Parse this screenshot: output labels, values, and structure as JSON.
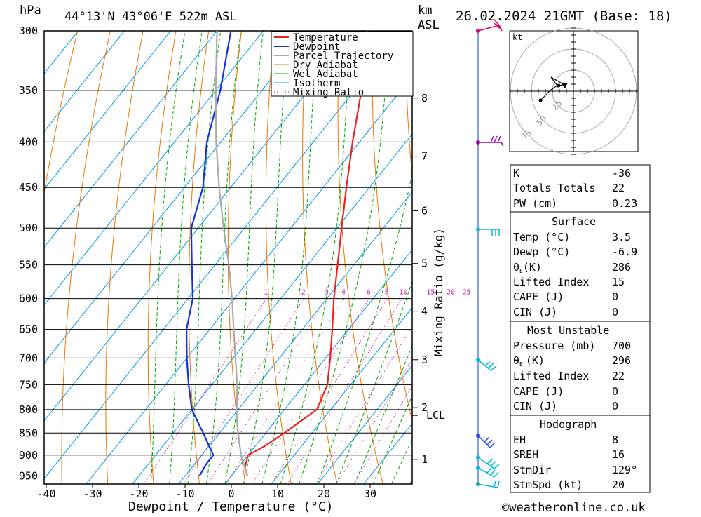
{
  "header": {
    "hpa_label": "hPa",
    "location": "44°13'N 43°06'E 522m ASL",
    "km_label": "km",
    "asl_label": "ASL",
    "datetime": "26.02.2024 21GMT (Base: 18)"
  },
  "colors": {
    "temperature": "#ee2222",
    "dewpoint": "#1133dd",
    "parcel": "#aaaaaa",
    "dry_adiabat": "#ee7700",
    "wet_adiabat": "#00aa00",
    "isotherm": "#0099ee",
    "mixing_ratio": "#cc0099",
    "wind_line": "#0044cc",
    "barb_cyan": "#00bbdd",
    "barb_blue": "#2244ee",
    "barb_purple": "#9900bb",
    "barb_magenta": "#dd0077"
  },
  "chart_data": {
    "type": "line",
    "xlabel": "Dewpoint / Temperature (°C)",
    "ylabel_right": "Mixing Ratio (g/kg)",
    "x_ticks": [
      "-40",
      "-30",
      "-20",
      "-10",
      "0",
      "10",
      "20",
      "30"
    ],
    "pressure_levels": [
      "300",
      "350",
      "400",
      "450",
      "500",
      "550",
      "600",
      "650",
      "700",
      "750",
      "800",
      "850",
      "900",
      "950"
    ],
    "km_ticks": [
      {
        "km": "1",
        "p": 910
      },
      {
        "km": "2",
        "p": 796
      },
      {
        "km": "3",
        "p": 703
      },
      {
        "km": "4",
        "p": 620
      },
      {
        "km": "5",
        "p": 548
      },
      {
        "km": "6",
        "p": 478
      },
      {
        "km": "7",
        "p": 415
      },
      {
        "km": "8",
        "p": 357
      }
    ],
    "lcl": {
      "label": "LCL",
      "p": 812
    },
    "mixing_ratio_labels": [
      "1",
      "2",
      "3",
      "4",
      "6",
      "8",
      "10",
      "15",
      "20",
      "25"
    ],
    "legend": [
      "Temperature",
      "Dewpoint",
      "Parcel Trajectory",
      "Dry Adiabat",
      "Wet Adiabat",
      "Isotherm",
      "Mixing Ratio"
    ],
    "series": [
      {
        "name": "Temperature",
        "points": [
          [
            950,
            3.5
          ],
          [
            930,
            1.5
          ],
          [
            900,
            0.0
          ],
          [
            880,
            2.0
          ],
          [
            850,
            4.0
          ],
          [
            800,
            7.0
          ],
          [
            750,
            5.0
          ],
          [
            700,
            1.0
          ],
          [
            650,
            -3.5
          ],
          [
            600,
            -8.5
          ],
          [
            550,
            -13.5
          ],
          [
            500,
            -19.0
          ],
          [
            450,
            -25.0
          ],
          [
            400,
            -31.5
          ],
          [
            350,
            -38.5
          ],
          [
            300,
            -47.5
          ]
        ]
      },
      {
        "name": "Dewpoint",
        "points": [
          [
            950,
            -6.9
          ],
          [
            920,
            -7.5
          ],
          [
            900,
            -7.5
          ],
          [
            850,
            -13.5
          ],
          [
            800,
            -20.0
          ],
          [
            750,
            -25.0
          ],
          [
            700,
            -30.0
          ],
          [
            650,
            -35.0
          ],
          [
            600,
            -39.0
          ],
          [
            550,
            -45.0
          ],
          [
            500,
            -51.5
          ],
          [
            450,
            -56.0
          ],
          [
            400,
            -63.0
          ],
          [
            350,
            -69.0
          ],
          [
            300,
            -77.0
          ]
        ]
      },
      {
        "name": "Parcel Trajectory",
        "points": [
          [
            950,
            3.5
          ],
          [
            900,
            -1.5
          ],
          [
            850,
            -6.0
          ],
          [
            812,
            -9.3
          ],
          [
            750,
            -14.5
          ],
          [
            700,
            -19.5
          ],
          [
            650,
            -24.8
          ],
          [
            600,
            -30.5
          ],
          [
            550,
            -37.0
          ],
          [
            500,
            -44.5
          ],
          [
            450,
            -52.5
          ],
          [
            400,
            -61.0
          ],
          [
            350,
            -70.0
          ],
          [
            300,
            -80.0
          ]
        ]
      }
    ],
    "hodograph": {
      "unit_label": "kt",
      "ring_labels": [
        "25",
        "50",
        "75"
      ]
    }
  },
  "indices": {
    "k_label": "K",
    "k_value": "-36",
    "tt_label": "Totals Totals",
    "tt_value": "22",
    "pw_label": "PW (cm)",
    "pw_value": "0.23"
  },
  "surface": {
    "title": "Surface",
    "temp_label": "Temp (°C)",
    "temp_value": "3.5",
    "dewp_label": "Dewp (°C)",
    "dewp_value": "-6.9",
    "theta_label": "θ",
    "theta_sub": "E",
    "theta_unit": "(K)",
    "theta_value": "286",
    "li_label": "Lifted Index",
    "li_value": "15",
    "cape_label": "CAPE (J)",
    "cape_value": "0",
    "cin_label": "CIN (J)",
    "cin_value": "0"
  },
  "most_unstable": {
    "title": "Most Unstable",
    "pressure_label": "Pressure (mb)",
    "pressure_value": "700",
    "theta_label": "θ",
    "theta_sub": "E",
    "theta_unit": "(K)",
    "theta_value": "296",
    "li_label": "Lifted Index",
    "li_value": "22",
    "cape_label": "CAPE (J)",
    "cape_value": "0",
    "cin_label": "CIN (J)",
    "cin_value": "0"
  },
  "hodograph_table": {
    "title": "Hodograph",
    "eh_label": "EH",
    "eh_value": "8",
    "srh_label": "SREH",
    "srh_value": "16",
    "stmdir_label": "StmDir",
    "stmdir_value": "129°",
    "stmspd_label": "StmSpd (kt)",
    "stmspd_value": "20"
  },
  "footer": {
    "copyright_symbol": "©",
    "site": "weatheronline.co.uk"
  }
}
